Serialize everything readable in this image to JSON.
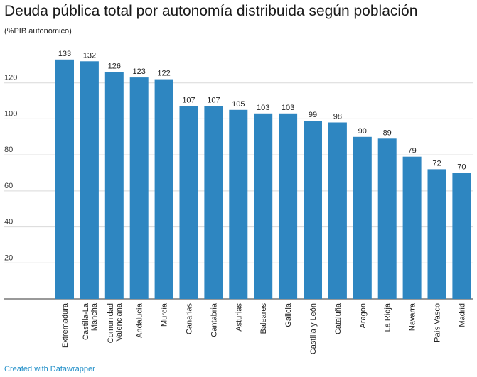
{
  "title": "Deuda pública total por autonomía distribuida según población",
  "subtitle": "(%PIB autonómico)",
  "footer": "Created with Datawrapper",
  "colors": {
    "bar": "#2e86c1",
    "link": "#1f8ec8"
  },
  "chart_data": {
    "type": "bar",
    "title": "Deuda pública total por autonomía distribuida según población",
    "subtitle": "(%PIB autonómico)",
    "categories": [
      "Extremadura",
      "Castilla-La Mancha",
      "Comunidad Valenciana",
      "Andalucía",
      "Murcia",
      "Canarias",
      "Cantabria",
      "Asturias",
      "Baleares",
      "Galicia",
      "Castilla y León",
      "Cataluña",
      "Aragón",
      "La Rioja",
      "Navarra",
      "País Vasco",
      "Madrid"
    ],
    "category_lines": [
      [
        "Extremadura"
      ],
      [
        "Castilla-La",
        "Mancha"
      ],
      [
        "Comunidad",
        "Valenciana"
      ],
      [
        "Andalucía"
      ],
      [
        "Murcia"
      ],
      [
        "Canarias"
      ],
      [
        "Cantabria"
      ],
      [
        "Asturias"
      ],
      [
        "Baleares"
      ],
      [
        "Galicia"
      ],
      [
        "Castilla y León"
      ],
      [
        "Cataluña"
      ],
      [
        "Aragón"
      ],
      [
        "La Rioja"
      ],
      [
        "Navarra"
      ],
      [
        "País Vasco"
      ],
      [
        "Madrid"
      ]
    ],
    "values": [
      133,
      132,
      126,
      123,
      122,
      107,
      107,
      105,
      103,
      103,
      99,
      98,
      90,
      89,
      79,
      72,
      70
    ],
    "yticks": [
      20,
      40,
      60,
      80,
      100,
      120
    ],
    "ylim": [
      0,
      140
    ],
    "grid": true,
    "xlabel": "",
    "ylabel": ""
  }
}
